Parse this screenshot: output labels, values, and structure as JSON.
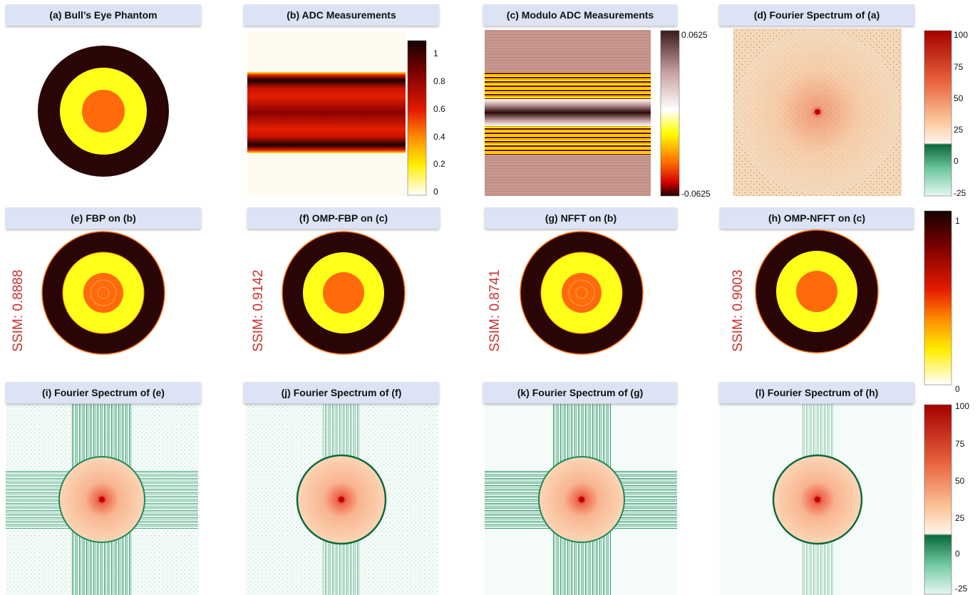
{
  "panels": {
    "a": "(a)  Bull’s Eye Phantom",
    "b": "(b)  ADC Measurements",
    "c": "(c)  Modulo ADC Measurements",
    "d": "(d)  Fourier Spectrum of (a)",
    "e": "(e)  FBP on (b)",
    "f": "(f)  OMP-FBP on (c)",
    "g": "(g)  NFFT on (b)",
    "h": "(h)  OMP-NFFT on (c)",
    "i": "(i)  Fourier Spectrum of (e)",
    "j": "(j)  Fourier Spectrum of (f)",
    "k": "(k)  Fourier Spectrum of (g)",
    "l": "(l)  Fourier Spectrum of (h)"
  },
  "ssim": {
    "e": "SSIM: 0.8888",
    "f": "SSIM: 0.9142",
    "g": "SSIM: 0.8741",
    "h": "SSIM: 0.9003"
  },
  "colorbars": {
    "adc": [
      "1",
      "0.8",
      "0.6",
      "0.4",
      "0.2",
      "0"
    ],
    "modulo": [
      "0.0625",
      "-0.0625"
    ],
    "spectrum_top": [
      "100",
      "75",
      "50",
      "25",
      "0",
      "-25"
    ],
    "recon": [
      "1",
      "0"
    ],
    "spectrum_bottom": [
      "100",
      "75",
      "50",
      "25",
      "0",
      "-25"
    ]
  },
  "colors": {
    "title_bg": "#dbe3f4",
    "ssim_text": "#c9302c",
    "ring_dark": "#2a0505",
    "ring_yellow": "#ffff1a",
    "ring_orange": "#ff6a0a",
    "spectrum_bg": "#f9d4b0",
    "spectrum_green": "#1e8a5a"
  }
}
